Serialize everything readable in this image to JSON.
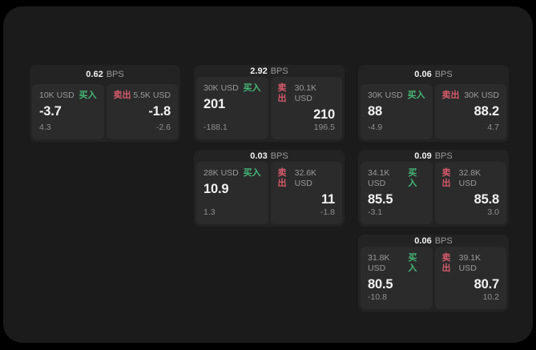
{
  "theme": {
    "page_bg": "#000000",
    "container_bg": "#1b1b1b",
    "card_bg": "#232323",
    "panel_bg": "#2b2b2b",
    "text_primary": "#f2f2f2",
    "text_muted": "#9a9a9a",
    "text_dim": "#8f8f8f",
    "buy_color": "#45b877",
    "sell_color": "#d45a6a"
  },
  "labels": {
    "bps_unit": "BPS",
    "buy_tag": "买入",
    "sell_tag": "卖出"
  },
  "cards": [
    {
      "row": 1,
      "col": 1,
      "bps": "0.62",
      "buy": {
        "size": "10K USD",
        "price": "-3.7",
        "delta": "4.3"
      },
      "sell": {
        "size": "5.5K USD",
        "price": "-1.8",
        "delta": "-2.6"
      }
    },
    {
      "row": 1,
      "col": 2,
      "bps": "2.92",
      "buy": {
        "size": "30K USD",
        "price": "201",
        "delta": "-188.1"
      },
      "sell": {
        "size": "30.1K USD",
        "price": "210",
        "delta": "196.5"
      }
    },
    {
      "row": 1,
      "col": 3,
      "bps": "0.06",
      "buy": {
        "size": "30K USD",
        "price": "88",
        "delta": "-4.9"
      },
      "sell": {
        "size": "30K USD",
        "price": "88.2",
        "delta": "4.7"
      }
    },
    {
      "row": 2,
      "col": 2,
      "bps": "0.03",
      "buy": {
        "size": "28K USD",
        "price": "10.9",
        "delta": "1.3"
      },
      "sell": {
        "size": "32.6K USD",
        "price": "11",
        "delta": "-1.8"
      }
    },
    {
      "row": 2,
      "col": 3,
      "bps": "0.09",
      "buy": {
        "size": "34.1K USD",
        "price": "85.5",
        "delta": "-3.1"
      },
      "sell": {
        "size": "32.8K USD",
        "price": "85.8",
        "delta": "3.0"
      }
    },
    {
      "row": 3,
      "col": 3,
      "bps": "0.06",
      "buy": {
        "size": "31.8K USD",
        "price": "80.5",
        "delta": "-10.8"
      },
      "sell": {
        "size": "39.1K USD",
        "price": "80.7",
        "delta": "10.2"
      }
    }
  ]
}
